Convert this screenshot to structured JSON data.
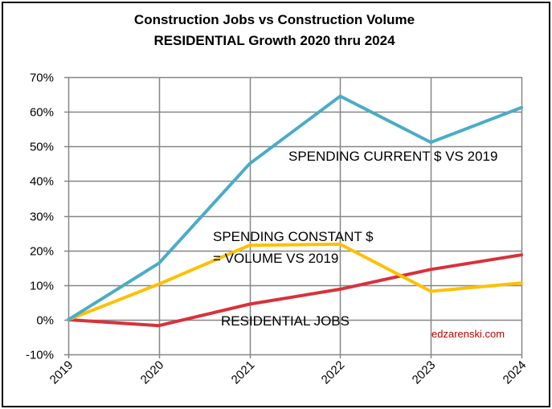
{
  "chart_data": {
    "type": "line",
    "title": "Construction Jobs vs Construction Volume",
    "subtitle": "RESIDENTIAL Growth 2020 thru 2024",
    "xlabel": "",
    "ylabel": "",
    "categories": [
      "2019",
      "2020",
      "2021",
      "2022",
      "2023",
      "2024"
    ],
    "yticks": [
      "-10%",
      "0%",
      "10%",
      "20%",
      "30%",
      "40%",
      "50%",
      "60%",
      "70%"
    ],
    "ylim": [
      -0.1,
      0.7
    ],
    "grid": true,
    "legend": "none (inline annotations)",
    "series": [
      {
        "name": "SPENDING CURRENT $ VS 2019",
        "color": "#4bacc6",
        "values": [
          0.0,
          0.163,
          0.45,
          0.645,
          0.512,
          0.612
        ]
      },
      {
        "name": "SPENDING CONSTANT $ = VOLUME VS 2019",
        "color": "#ffc000",
        "values": [
          0.0,
          0.103,
          0.215,
          0.218,
          0.082,
          0.106
        ]
      },
      {
        "name": "RESIDENTIAL JOBS",
        "color": "#d9313b",
        "values": [
          0.0,
          -0.017,
          0.045,
          0.088,
          0.145,
          0.187
        ]
      }
    ],
    "annotations": [
      {
        "id": "current",
        "lines": [
          "SPENDING CURRENT $ VS 2019"
        ]
      },
      {
        "id": "constant",
        "lines": [
          "SPENDING CONSTANT $",
          "= VOLUME VS 2019"
        ]
      },
      {
        "id": "jobs",
        "lines": [
          "RESIDENTIAL JOBS"
        ]
      }
    ],
    "watermark": "edzarenski.com"
  }
}
